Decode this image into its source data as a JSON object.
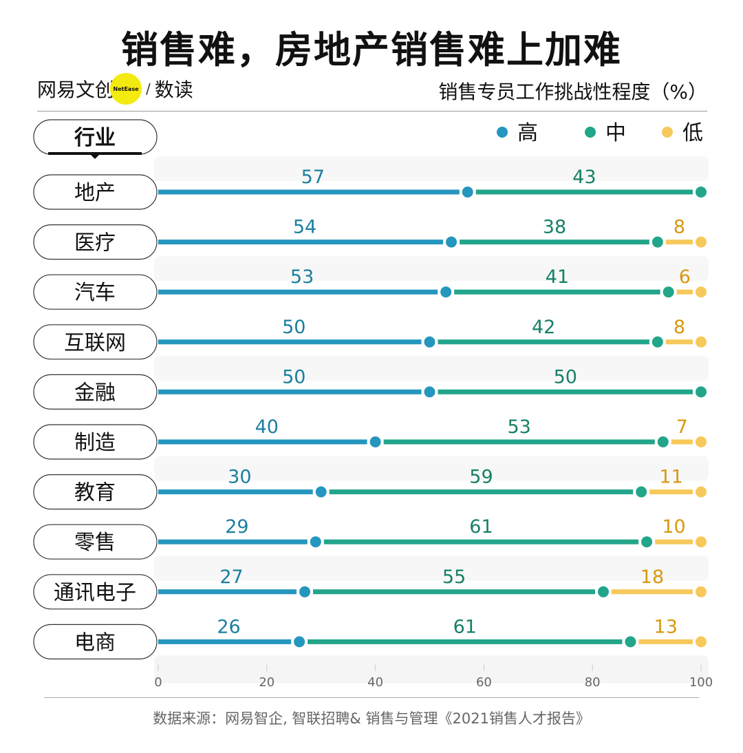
{
  "title": "销售难，房地产销售难上加难",
  "brand": {
    "name": "网易文创",
    "logo_text": "NetEase",
    "section": "数读"
  },
  "subtitle": "销售专员工作挑战性程度（%）",
  "source": "数据来源：网易智企, 智联招聘& 销售与管理《2021销售人才报告》",
  "colors": {
    "high": "#2596be",
    "mid": "#22a58a",
    "low": "#f7c95c",
    "high_text": "#1b7f9f",
    "mid_text": "#178068",
    "low_text": "#d9980f"
  },
  "chart_data": {
    "type": "stacked-dot-line",
    "category_header": "行业",
    "categories": [
      "地产",
      "医疗",
      "汽车",
      "互联网",
      "金融",
      "制造",
      "教育",
      "零售",
      "通讯电子",
      "电商"
    ],
    "series": [
      {
        "name": "高",
        "values": [
          57,
          54,
          53,
          50,
          50,
          40,
          30,
          29,
          27,
          26
        ]
      },
      {
        "name": "中",
        "values": [
          43,
          38,
          41,
          42,
          50,
          53,
          59,
          61,
          55,
          61
        ]
      },
      {
        "name": "低",
        "values": [
          0,
          8,
          6,
          8,
          0,
          7,
          11,
          10,
          18,
          13
        ]
      }
    ],
    "xlim": [
      0,
      100
    ],
    "x_ticks": [
      "0",
      "20",
      "40",
      "60",
      "80",
      "100"
    ],
    "legend_position": "top-right"
  }
}
